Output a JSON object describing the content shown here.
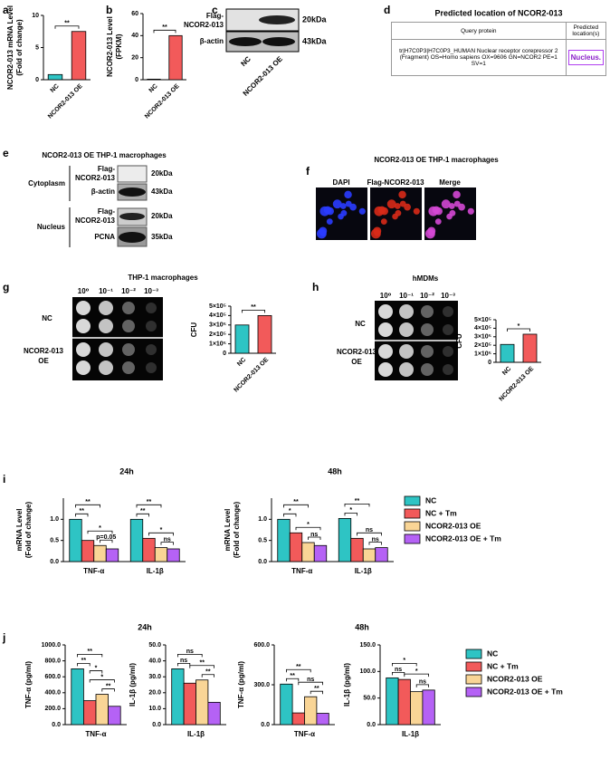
{
  "panel_letters": [
    "a",
    "b",
    "c",
    "d",
    "e",
    "f",
    "g",
    "h",
    "i",
    "j"
  ],
  "blot_c": {
    "rows": [
      {
        "label": [
          "Flag-",
          "NCOR2-013"
        ],
        "size": "20kDa"
      },
      {
        "label": [
          "β-actin"
        ],
        "size": "43kDa"
      }
    ],
    "lanes": [
      "NC",
      "NCOR2-013 OE"
    ]
  },
  "table_d": {
    "title": "Predicted location of NCOR2-013",
    "header": [
      "Query protein",
      "Predicted location(s)"
    ],
    "rows": [
      [
        "tr|H7C0P3|H7C0P3_HUMAN Nuclear receptor corepressor 2 (Fragment) OS=Homo sapiens OX=9606 GN=NCOR2 PE=1 SV=1",
        "Nucleus."
      ]
    ]
  },
  "blot_e": {
    "title": "NCOR2-013 OE THP-1 macrophages",
    "compartments": [
      {
        "name": "Cytoplasm",
        "rows": [
          {
            "label": [
              "Flag-",
              "NCOR2-013"
            ],
            "size": "20kDa"
          },
          {
            "label": [
              "β-actin"
            ],
            "size": "43kDa"
          }
        ]
      },
      {
        "name": "Nucleus",
        "rows": [
          {
            "label": [
              "Flag-",
              "NCOR2-013"
            ],
            "size": "20kDa"
          },
          {
            "label": [
              "PCNA"
            ],
            "size": "35kDa"
          }
        ]
      }
    ]
  },
  "images_f": {
    "title": "NCOR2-013 OE THP-1 macrophages",
    "channels": [
      "DAPI",
      "Flag-NCOR2-013",
      "Merge"
    ]
  },
  "spots_g": {
    "title": "THP-1 macrophages",
    "dilutions": [
      "10⁰",
      "10⁻¹",
      "10⁻²",
      "10⁻³"
    ],
    "rows": [
      [
        "NC"
      ],
      [
        "NCOR2-013",
        "OE"
      ]
    ]
  },
  "spots_h": {
    "title": "hMDMs",
    "dilutions": [
      "10⁰",
      "10⁻¹",
      "10⁻²",
      "10⁻³"
    ],
    "rows": [
      [
        "NC"
      ],
      [
        "NCOR2-013",
        "OE"
      ]
    ]
  },
  "chart_data": [
    {
      "type": "bar",
      "ylabel": [
        "NCOR2-013 mRNA Level",
        "(Fold of change)"
      ],
      "categories": [
        "NC",
        "NCOR2-013 OE"
      ],
      "values": [
        0.8,
        7.5
      ],
      "colors": [
        "#2ec4c4",
        "#f25a5a"
      ],
      "ylim": [
        0,
        10
      ],
      "yticks": [
        0,
        5,
        10
      ],
      "brackets": [
        {
          "text": "**",
          "from": 0,
          "to": 1
        }
      ]
    },
    {
      "type": "bar",
      "ylabel": [
        "NCOR2-013 Level",
        "(FPKM)"
      ],
      "categories": [
        "NC",
        "NCOR2-013 OE"
      ],
      "values": [
        0.5,
        40
      ],
      "colors": [
        "#2ec4c4",
        "#f25a5a"
      ],
      "ylim": [
        0,
        60
      ],
      "yticks": [
        0,
        20,
        40,
        60
      ],
      "brackets": [
        {
          "text": "**",
          "from": 0,
          "to": 1
        }
      ]
    },
    {
      "type": "bar",
      "ylabel": [
        "CFU"
      ],
      "categories": [
        "NC",
        "NCOR2-013 OE"
      ],
      "values": [
        300000,
        400000
      ],
      "colors": [
        "#2ec4c4",
        "#f25a5a"
      ],
      "ylim": [
        0,
        500000
      ],
      "yticks": [
        0,
        {
          "value": 100000,
          "label": "1×10⁵"
        },
        {
          "value": 200000,
          "label": "2×10⁵"
        },
        {
          "value": 300000,
          "label": "3×10⁵"
        },
        {
          "value": 400000,
          "label": "4×10⁵"
        },
        {
          "value": 500000,
          "label": "5×10⁵"
        }
      ],
      "brackets": [
        {
          "text": "**",
          "from": 0,
          "to": 1
        }
      ]
    },
    {
      "type": "bar",
      "ylabel": [
        "CFU"
      ],
      "categories": [
        "NC",
        "NCOR2-013 OE"
      ],
      "values": [
        210000,
        330000
      ],
      "colors": [
        "#2ec4c4",
        "#f25a5a"
      ],
      "ylim": [
        0,
        500000
      ],
      "yticks": [
        0,
        {
          "value": 100000,
          "label": "1×10⁵"
        },
        {
          "value": 200000,
          "label": "2×10⁵"
        },
        {
          "value": 300000,
          "label": "3×10⁵"
        },
        {
          "value": 400000,
          "label": "4×10⁵"
        },
        {
          "value": 500000,
          "label": "5×10⁵"
        }
      ],
      "brackets": [
        {
          "text": "*",
          "from": 0,
          "to": 1
        }
      ]
    },
    {
      "type": "grouped-bar",
      "title": "24h",
      "ylabel": [
        "mRNA Level",
        "(Fold of change)"
      ],
      "categories": [
        "TNF-α",
        "IL-1β"
      ],
      "series": [
        {
          "color": "#2ec4c4",
          "values": [
            1.0,
            1.0
          ]
        },
        {
          "color": "#f25a5a",
          "values": [
            0.5,
            0.55
          ]
        },
        {
          "color": "#f9d596",
          "values": [
            0.38,
            0.33
          ]
        },
        {
          "color": "#b562f5",
          "values": [
            0.3,
            0.3
          ]
        }
      ],
      "ylim": [
        0,
        1.5
      ],
      "yticks": [
        {
          "value": 0,
          "label": "0.0"
        },
        0.5,
        {
          "value": 1,
          "label": "1.0"
        }
      ],
      "brackets": [
        {
          "text": "**",
          "category": 0,
          "from": 0,
          "to": 1
        },
        {
          "text": "p=0.05",
          "category": 0,
          "from": 2,
          "to": 3
        },
        {
          "text": "*",
          "category": 0,
          "from": 1,
          "to": 3
        },
        {
          "text": "**",
          "category": 0,
          "from": 0,
          "to": 2
        },
        {
          "text": "**",
          "category": 1,
          "from": 0,
          "to": 1
        },
        {
          "text": "ns",
          "category": 1,
          "from": 2,
          "to": 3
        },
        {
          "text": "*",
          "category": 1,
          "from": 1,
          "to": 3
        },
        {
          "text": "**",
          "category": 1,
          "from": 0,
          "to": 2
        }
      ]
    },
    {
      "type": "grouped-bar",
      "title": "48h",
      "ylabel": [
        "mRNA Level",
        "(Fold of change)"
      ],
      "categories": [
        "TNF-α",
        "IL-1β"
      ],
      "series": [
        {
          "name": "NC",
          "color": "#2ec4c4",
          "values": [
            1.0,
            1.02
          ]
        },
        {
          "name": "NC + Tm",
          "color": "#f25a5a",
          "values": [
            0.68,
            0.55
          ]
        },
        {
          "name": "NCOR2-013 OE",
          "color": "#f9d596",
          "values": [
            0.45,
            0.3
          ]
        },
        {
          "name": "NCOR2-013 OE + Tm",
          "color": "#b562f5",
          "values": [
            0.38,
            0.33
          ]
        }
      ],
      "ylim": [
        0,
        1.5
      ],
      "yticks": [
        {
          "value": 0,
          "label": "0.0"
        },
        0.5,
        {
          "value": 1,
          "label": "1.0"
        }
      ],
      "brackets": [
        {
          "text": "*",
          "category": 0,
          "from": 0,
          "to": 1
        },
        {
          "text": "ns",
          "category": 0,
          "from": 2,
          "to": 3
        },
        {
          "text": "*",
          "category": 0,
          "from": 1,
          "to": 3
        },
        {
          "text": "**",
          "category": 0,
          "from": 0,
          "to": 2
        },
        {
          "text": "*",
          "category": 1,
          "from": 0,
          "to": 1
        },
        {
          "text": "ns",
          "category": 1,
          "from": 2,
          "to": 3
        },
        {
          "text": "ns",
          "category": 1,
          "from": 1,
          "to": 3
        },
        {
          "text": "**",
          "category": 1,
          "from": 0,
          "to": 2
        }
      ]
    },
    {
      "type": "grouped-bar",
      "title": "24h",
      "ylabel": [
        "TNF-α (pg/ml)"
      ],
      "categories": [
        "TNF-α"
      ],
      "series": [
        {
          "color": "#2ec4c4",
          "values": [
            700
          ]
        },
        {
          "color": "#f25a5a",
          "values": [
            300
          ]
        },
        {
          "color": "#f9d596",
          "values": [
            380
          ]
        },
        {
          "color": "#b562f5",
          "values": [
            230
          ]
        }
      ],
      "ylim": [
        0,
        1000
      ],
      "yticks": [
        {
          "value": 0,
          "label": "0.0"
        },
        {
          "value": 200,
          "label": "200.0"
        },
        {
          "value": 400,
          "label": "400.0"
        },
        {
          "value": 600,
          "label": "600.0"
        },
        {
          "value": 800,
          "label": "800.0"
        },
        {
          "value": 1000,
          "label": "1000.0"
        }
      ],
      "brackets": [
        {
          "text": "**",
          "category": 0,
          "from": 2,
          "to": 3
        },
        {
          "text": "*",
          "category": 0,
          "from": 1,
          "to": 3
        },
        {
          "text": "*",
          "category": 0,
          "from": 1,
          "to": 2
        },
        {
          "text": "**",
          "category": 0,
          "from": 0,
          "to": 1
        },
        {
          "text": "**",
          "category": 0,
          "from": 0,
          "to": 2
        }
      ]
    },
    {
      "type": "grouped-bar",
      "ylabel": [
        "IL-1β (pg/ml)"
      ],
      "categories": [
        "IL-1β"
      ],
      "series": [
        {
          "color": "#2ec4c4",
          "values": [
            35
          ]
        },
        {
          "color": "#f25a5a",
          "values": [
            26
          ]
        },
        {
          "color": "#f9d596",
          "values": [
            28
          ]
        },
        {
          "color": "#b562f5",
          "values": [
            14
          ]
        }
      ],
      "ylim": [
        0,
        50
      ],
      "yticks": [
        {
          "value": 0,
          "label": "0.0"
        },
        {
          "value": 10,
          "label": "10.0"
        },
        {
          "value": 20,
          "label": "20.0"
        },
        {
          "value": 30,
          "label": "30.0"
        },
        {
          "value": 40,
          "label": "40.0"
        },
        {
          "value": 50,
          "label": "50.0"
        }
      ],
      "brackets": [
        {
          "text": "**",
          "category": 0,
          "from": 2,
          "to": 3
        },
        {
          "text": "**",
          "category": 0,
          "from": 1,
          "to": 3
        },
        {
          "text": "ns",
          "category": 0,
          "from": 0,
          "to": 1
        },
        {
          "text": "ns",
          "category": 0,
          "from": 0,
          "to": 2
        }
      ]
    },
    {
      "type": "grouped-bar",
      "title": "48h",
      "ylabel": [
        "TNF-α (pg/ml)"
      ],
      "categories": [
        "TNF-α"
      ],
      "series": [
        {
          "color": "#2ec4c4",
          "values": [
            305
          ]
        },
        {
          "color": "#f25a5a",
          "values": [
            88
          ]
        },
        {
          "color": "#f9d596",
          "values": [
            210
          ]
        },
        {
          "color": "#b562f5",
          "values": [
            85
          ]
        }
      ],
      "ylim": [
        0,
        600
      ],
      "yticks": [
        {
          "value": 0,
          "label": "0.0"
        },
        {
          "value": 300,
          "label": "300.0"
        },
        {
          "value": 600,
          "label": "600.0"
        }
      ],
      "brackets": [
        {
          "text": "**",
          "category": 0,
          "from": 2,
          "to": 3
        },
        {
          "text": "ns",
          "category": 0,
          "from": 1,
          "to": 3
        },
        {
          "text": "**",
          "category": 0,
          "from": 0,
          "to": 1
        },
        {
          "text": "**",
          "category": 0,
          "from": 0,
          "to": 2
        }
      ]
    },
    {
      "type": "grouped-bar",
      "ylabel": [
        "IL-1β (pg/ml)"
      ],
      "categories": [
        "IL-1β"
      ],
      "series": [
        {
          "name": "NC",
          "color": "#2ec4c4",
          "values": [
            88
          ]
        },
        {
          "name": "NC + Tm",
          "color": "#f25a5a",
          "values": [
            85
          ]
        },
        {
          "name": "NCOR2-013 OE",
          "color": "#f9d596",
          "values": [
            62
          ]
        },
        {
          "name": "NCOR2-013 OE + Tm",
          "color": "#b562f5",
          "values": [
            65
          ]
        }
      ],
      "ylim": [
        0,
        150
      ],
      "yticks": [
        {
          "value": 0,
          "label": "0.0"
        },
        {
          "value": 50,
          "label": "50.0"
        },
        {
          "value": 100,
          "label": "100.0"
        },
        {
          "value": 150,
          "label": "150.0"
        }
      ],
      "brackets": [
        {
          "text": "ns",
          "category": 0,
          "from": 2,
          "to": 3
        },
        {
          "text": "*",
          "category": 0,
          "from": 1,
          "to": 3
        },
        {
          "text": "ns",
          "category": 0,
          "from": 0,
          "to": 1
        },
        {
          "text": "*",
          "category": 0,
          "from": 0,
          "to": 2
        }
      ]
    }
  ]
}
